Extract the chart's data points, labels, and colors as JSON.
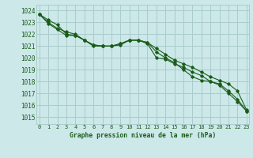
{
  "title": "Graphe pression niveau de la mer (hPa)",
  "bg_color": "#cce8e8",
  "grid_color": "#aacccc",
  "line_color": "#1a5c1a",
  "x_ticks": [
    0,
    1,
    2,
    3,
    4,
    5,
    6,
    7,
    8,
    9,
    10,
    11,
    12,
    13,
    14,
    15,
    16,
    17,
    18,
    19,
    20,
    21,
    22,
    23
  ],
  "y_ticks": [
    1015,
    1016,
    1017,
    1018,
    1019,
    1020,
    1021,
    1022,
    1023,
    1024
  ],
  "xlim": [
    -0.3,
    23.3
  ],
  "ylim": [
    1014.4,
    1024.5
  ],
  "series1": [
    1023.7,
    1023.2,
    1022.8,
    1022.0,
    1021.9,
    1021.5,
    1021.0,
    1021.0,
    1021.0,
    1021.1,
    1021.5,
    1021.5,
    1021.2,
    1020.0,
    1019.9,
    1019.5,
    1019.2,
    1018.8,
    1018.5,
    1018.0,
    1017.8,
    1017.2,
    1016.5,
    1015.5
  ],
  "series2": [
    1023.7,
    1023.0,
    1022.5,
    1022.2,
    1022.0,
    1021.5,
    1021.1,
    1021.0,
    1021.0,
    1021.2,
    1021.5,
    1021.5,
    1021.3,
    1020.8,
    1020.3,
    1019.8,
    1019.5,
    1019.2,
    1018.8,
    1018.4,
    1018.1,
    1017.8,
    1017.2,
    1015.6
  ],
  "series3": [
    1023.7,
    1022.9,
    1022.4,
    1021.9,
    1021.9,
    1021.5,
    1021.1,
    1021.0,
    1021.0,
    1021.2,
    1021.5,
    1021.5,
    1021.3,
    1020.5,
    1020.0,
    1019.6,
    1019.0,
    1018.4,
    1018.1,
    1018.0,
    1017.7,
    1017.0,
    1016.3,
    1015.5
  ]
}
